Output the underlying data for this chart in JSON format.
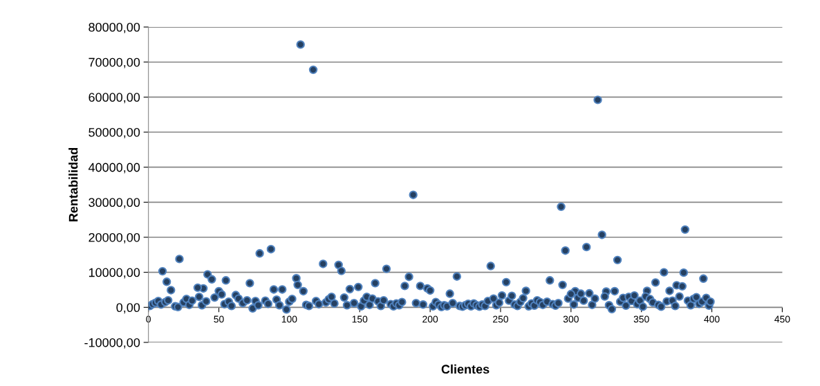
{
  "chart_data": {
    "type": "scatter",
    "xlabel": "Clientes",
    "ylabel": "Rentabilidad",
    "xlim": [
      0,
      450
    ],
    "xticks": [
      0,
      50,
      100,
      150,
      200,
      250,
      300,
      350,
      400,
      450
    ],
    "ylim": [
      -10000,
      80000
    ],
    "yticks": [
      {
        "value": -10000,
        "label": "-10000,00"
      },
      {
        "value": 0,
        "label": "0,00"
      },
      {
        "value": 10000,
        "label": "10000,00"
      },
      {
        "value": 20000,
        "label": "20000,00"
      },
      {
        "value": 30000,
        "label": "30000,00"
      },
      {
        "value": 40000,
        "label": "40000,00"
      },
      {
        "value": 50000,
        "label": "50000,00"
      },
      {
        "value": 60000,
        "label": "60000,00"
      },
      {
        "value": 70000,
        "label": "70000,00"
      },
      {
        "value": 80000,
        "label": "80000,00"
      }
    ],
    "grid": "y",
    "marker": "circle",
    "series": [
      {
        "color": "#254061",
        "x": [
          108,
          117,
          319,
          188,
          293,
          381,
          322,
          87,
          79,
          296,
          311,
          22,
          333,
          124,
          135,
          243,
          169,
          10,
          137,
          366,
          380,
          42,
          185,
          219,
          45,
          105,
          394,
          285,
          13,
          55,
          254,
          161,
          72,
          360,
          294,
          375,
          106,
          182,
          193,
          149,
          198,
          379,
          39,
          95,
          89,
          35,
          143,
          200,
          16,
          303,
          110,
          50,
          325,
          354,
          331,
          268,
          370,
          1,
          3,
          5,
          7,
          9,
          12,
          14,
          19,
          21,
          25,
          27,
          29,
          31,
          36,
          38,
          41,
          47,
          52,
          54,
          57,
          59,
          62,
          64,
          67,
          70,
          74,
          76,
          78,
          83,
          85,
          91,
          93,
          98,
          100,
          102,
          112,
          114,
          119,
          121,
          126,
          128,
          130,
          132,
          139,
          141,
          146,
          151,
          153,
          155,
          157,
          159,
          163,
          165,
          167,
          172,
          174,
          176,
          178,
          180,
          190,
          195,
          202,
          204,
          206,
          208,
          210,
          212,
          214,
          216,
          221,
          223,
          225,
          227,
          229,
          231,
          233,
          235,
          237,
          239,
          241,
          245,
          247,
          249,
          251,
          256,
          258,
          260,
          262,
          264,
          266,
          270,
          272,
          274,
          276,
          278,
          280,
          283,
          287,
          289,
          291,
          298,
          300,
          302,
          305,
          307,
          309,
          313,
          315,
          317,
          324,
          327,
          329,
          335,
          337,
          339,
          341,
          343,
          345,
          347,
          349,
          351,
          353,
          356,
          358,
          362,
          364,
          368,
          372,
          374,
          377,
          383,
          385,
          387,
          389,
          391,
          393,
          396,
          398,
          399
        ],
        "values": [
          75000,
          67800,
          59200,
          32100,
          28700,
          22200,
          20700,
          16600,
          15400,
          16200,
          17200,
          13800,
          13500,
          12400,
          12100,
          11800,
          11000,
          10300,
          10400,
          10000,
          9900,
          9400,
          8700,
          8800,
          8000,
          8300,
          8200,
          7700,
          7300,
          7700,
          7200,
          6900,
          6900,
          7100,
          6400,
          6300,
          6400,
          6100,
          6100,
          5800,
          5400,
          6000,
          5400,
          5100,
          5100,
          5600,
          5200,
          4800,
          4900,
          4600,
          4600,
          4600,
          4500,
          4700,
          4600,
          4700,
          4700,
          400,
          900,
          1300,
          1800,
          800,
          1500,
          2000,
          300,
          100,
          1400,
          2400,
          700,
          1900,
          3000,
          600,
          1700,
          2800,
          3700,
          900,
          1600,
          400,
          3500,
          2500,
          1200,
          2000,
          -300,
          1800,
          600,
          1900,
          1000,
          2200,
          600,
          -600,
          1600,
          2400,
          700,
          400,
          1800,
          900,
          1400,
          2300,
          3000,
          1100,
          2800,
          600,
          1200,
          300,
          1900,
          3000,
          700,
          2500,
          1700,
          400,
          2000,
          900,
          300,
          1100,
          600,
          1500,
          1200,
          800,
          300,
          1500,
          800,
          100,
          600,
          300,
          3900,
          1200,
          400,
          200,
          600,
          1000,
          300,
          1100,
          600,
          200,
          800,
          400,
          1800,
          2500,
          600,
          1300,
          3400,
          1900,
          3300,
          800,
          400,
          1500,
          2600,
          300,
          1100,
          500,
          2000,
          1500,
          700,
          1600,
          900,
          500,
          1200,
          2500,
          3800,
          800,
          2700,
          3900,
          1900,
          4000,
          700,
          2500,
          3100,
          600,
          -500,
          1600,
          2700,
          500,
          3000,
          1800,
          3400,
          900,
          1900,
          200,
          3100,
          2400,
          1400,
          700,
          200,
          1700,
          1900,
          400,
          3100,
          1900,
          600,
          2400,
          2900,
          1000,
          1600,
          2700,
          500,
          1600
        ]
      }
    ]
  }
}
